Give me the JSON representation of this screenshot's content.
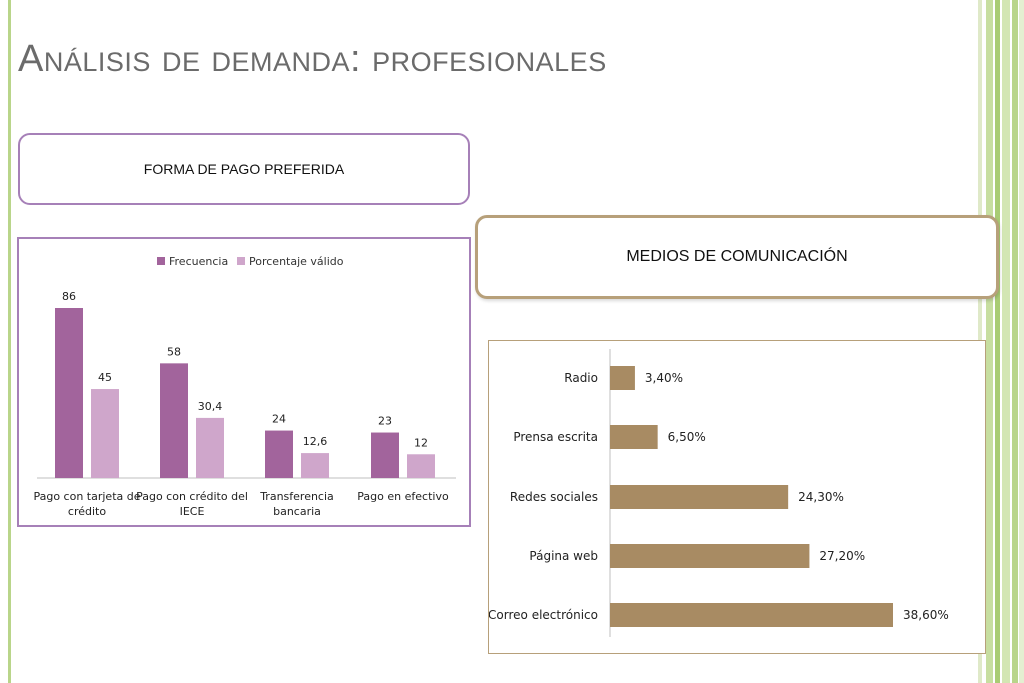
{
  "slide": {
    "title": "Análisis de demanda: profesionales",
    "box_left": "FORMA DE PAGO PREFERIDA",
    "box_right": "MEDIOS DE COMUNICACIÓN"
  },
  "colors": {
    "frecuencia": "#a2649c",
    "porcentaje": "#cfa6cb",
    "media_bar": "#a88b63",
    "title_text": "#6b6b6b",
    "stripe_green": "#b9d58a"
  },
  "chart_data": [
    {
      "type": "bar",
      "categories": [
        [
          "Pago con tarjeta de",
          "crédito"
        ],
        [
          "Pago con crédito del",
          "IECE"
        ],
        [
          "Transferencia",
          "bancaria"
        ],
        [
          "Pago en efectivo"
        ]
      ],
      "series": [
        {
          "name": "Frecuencia",
          "values": [
            86,
            58,
            24,
            23
          ],
          "labels": [
            "86",
            "58",
            "24",
            "23"
          ]
        },
        {
          "name": "Porcentaje válido",
          "values": [
            45,
            30.4,
            12.6,
            12
          ],
          "labels": [
            "45",
            "30,4",
            "12,6",
            "12"
          ]
        }
      ],
      "ylim": [
        0,
        90
      ],
      "legend": "top-center",
      "grid": false
    },
    {
      "type": "bar",
      "orientation": "horizontal",
      "categories": [
        "Radio",
        "Prensa escrita",
        "Redes sociales",
        "Página web",
        "Correo electrónico"
      ],
      "values": [
        3.4,
        6.5,
        24.3,
        27.2,
        38.6
      ],
      "labels": [
        "3,40%",
        "6,50%",
        "24,30%",
        "27,20%",
        "38,60%"
      ],
      "xlim": [
        0,
        40
      ],
      "grid": false
    }
  ]
}
